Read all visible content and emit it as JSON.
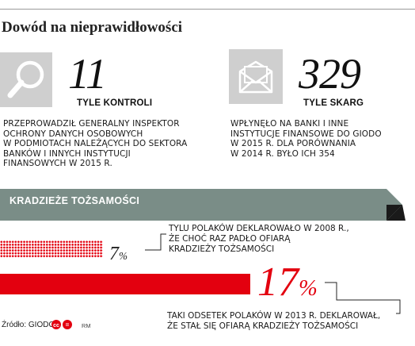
{
  "headline": "Dowód na nieprawidłowości",
  "stats": [
    {
      "icon": "magnifier-icon",
      "number": "11",
      "label": "TYLE KONTROLI",
      "description": [
        "PRZEPROWADZIŁ GENERALNY INSPEKTOR",
        "OCHRONY DANYCH OSOBOWYCH",
        "W PODMIOTACH NALEŻĄCYCH DO SEKTORA",
        "BANKÓW I INNYCH INSTYTUCJI",
        "FINANSOWYCH W 2015 R."
      ]
    },
    {
      "icon": "envelope-icon",
      "number": "329",
      "label": "TYLE SKARG",
      "description": [
        "WPŁYNĘŁO NA BANKI I INNE",
        "INSTYTUCJE FINANSOWE DO GIODO",
        "W 2015 R. DLA PORÓWNANIA",
        "W 2014 R. BYŁO ICH 354"
      ]
    }
  ],
  "section": {
    "title": "KRADZIEŻE TOŻSAMOŚCI",
    "banner_color": "#7a8d87"
  },
  "bars": [
    {
      "year": "2008",
      "value": 7,
      "value_label": "7",
      "percent_sign": "%",
      "color": "#e3000f",
      "style": "dotted",
      "note": [
        "TYLU POLAKÓW DEKLAROWAŁO W 2008 R.,",
        "ŻE CHOĆ RAZ PADŁO OFIARĄ",
        "KRADZIEŻY TOŻSAMOŚCI"
      ]
    },
    {
      "year": "2013",
      "value": 17,
      "value_label": "17",
      "percent_sign": "%",
      "color": "#e3000f",
      "style": "solid",
      "note": [
        "TAKI ODSETEK POLAKÓW W 2013 R. DEKLAROWAŁ,",
        "ŻE STAŁ SIĘ OFIARĄ KRADZIEŻY TOŻSAMOŚCI"
      ]
    }
  ],
  "footer": {
    "source": "Źródło: GIODO",
    "brand": "RM"
  }
}
